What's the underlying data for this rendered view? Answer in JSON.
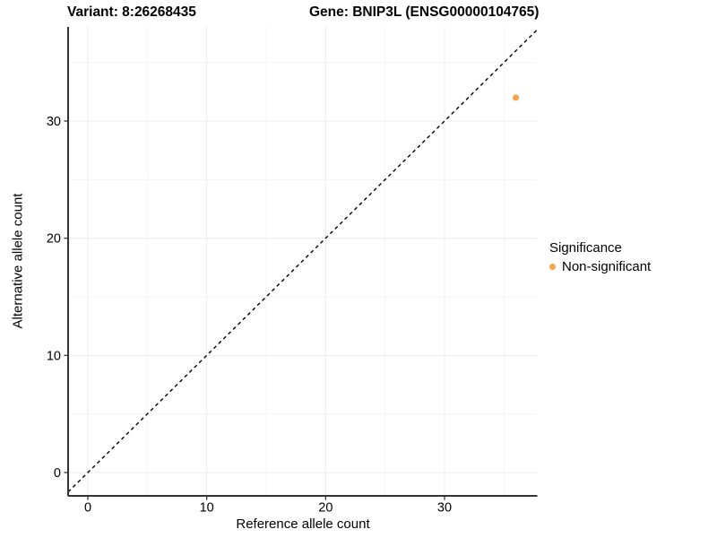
{
  "title": {
    "variant": "Variant: 8:26268435",
    "gene": "Gene: BNIP3L (ENSG00000104765)"
  },
  "axes": {
    "xlabel": "Reference allele count",
    "ylabel": "Alternative allele count"
  },
  "legend": {
    "title": "Significance",
    "items": [
      {
        "label": "Non-significant",
        "color": "#F9A242"
      }
    ]
  },
  "colors": {
    "point": "#F9A242",
    "axis_line": "#333333",
    "tick": "#333333",
    "grid_major": "#EBEBEB",
    "grid_minor": "#F5F5F5",
    "identity_line": "#000000",
    "text": "#000000"
  },
  "chart_data": {
    "type": "scatter",
    "title": "Variant: 8:26268435    Gene: BNIP3L (ENSG00000104765)",
    "xlabel": "Reference allele count",
    "ylabel": "Alternative allele count",
    "x_ticks": [
      0,
      10,
      20,
      30
    ],
    "y_ticks": [
      0,
      10,
      20,
      30
    ],
    "minor_ticks": [
      5,
      15,
      25,
      35
    ],
    "xlim": [
      -1.85,
      37.95
    ],
    "ylim": [
      -2.0,
      38.0
    ],
    "grid": true,
    "legend_title": "Significance",
    "legend_position": "right",
    "identity_line": {
      "equation": "y = x",
      "style": "dashed",
      "color": "#000000"
    },
    "series": [
      {
        "name": "Non-significant",
        "color": "#F9A242",
        "points": [
          {
            "x": 36,
            "y": 32
          }
        ]
      }
    ]
  }
}
